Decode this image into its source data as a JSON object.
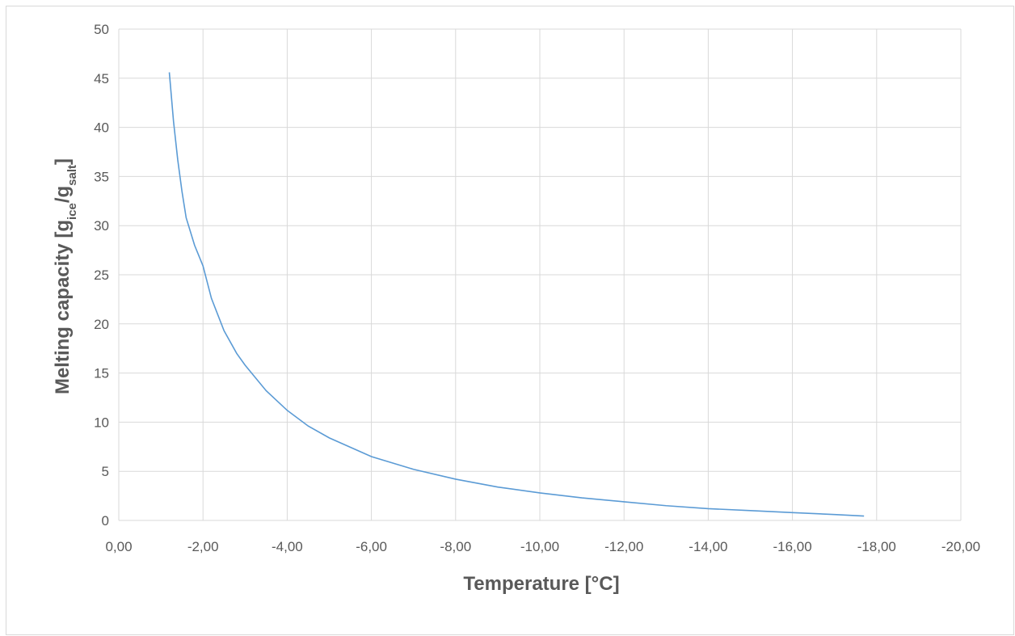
{
  "chart_data": {
    "type": "line",
    "title": "",
    "xlabel": "Temperature [°C]",
    "ylabel": {
      "prefix": "Melting capacity [g",
      "sub1": "ice",
      "mid": "/g",
      "sub2": "salt",
      "suffix": "]"
    },
    "xlim": [
      0,
      -20
    ],
    "ylim": [
      0,
      50
    ],
    "x_ticks": [
      0,
      -2,
      -4,
      -6,
      -8,
      -10,
      -12,
      -14,
      -16,
      -18,
      -20
    ],
    "x_tick_labels": [
      "0,00",
      "-2,00",
      "-4,00",
      "-6,00",
      "-8,00",
      "-10,00",
      "-12,00",
      "-14,00",
      "-16,00",
      "-18,00",
      "-20,00"
    ],
    "y_ticks": [
      0,
      5,
      10,
      15,
      20,
      25,
      30,
      35,
      40,
      45,
      50
    ],
    "y_tick_labels": [
      "0",
      "5",
      "10",
      "15",
      "20",
      "25",
      "30",
      "35",
      "40",
      "45",
      "50"
    ],
    "grid": true,
    "legend": "none",
    "line_color": "#5b9bd5",
    "series": [
      {
        "x": [
          -1.2,
          -1.3,
          -1.4,
          -1.5,
          -1.6,
          -1.8,
          -2.0,
          -2.2,
          -2.5,
          -2.8,
          -3.0,
          -3.5,
          -4.0,
          -4.5,
          -5.0,
          -6.0,
          -7.0,
          -8.0,
          -9.0,
          -10.0,
          -11.0,
          -12.0,
          -13.0,
          -14.0,
          -15.0,
          -16.0,
          -17.0,
          -17.7
        ],
        "y": [
          45.6,
          40.6,
          36.7,
          33.5,
          30.8,
          28.0,
          25.9,
          22.6,
          19.3,
          17.0,
          15.8,
          13.2,
          11.2,
          9.6,
          8.4,
          6.5,
          5.2,
          4.2,
          3.4,
          2.8,
          2.3,
          1.9,
          1.5,
          1.2,
          1.0,
          0.8,
          0.6,
          0.45
        ]
      }
    ]
  }
}
